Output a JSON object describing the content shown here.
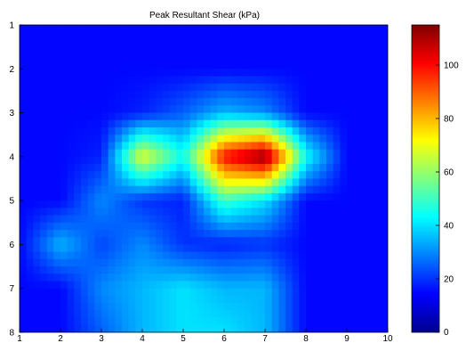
{
  "chart_data": {
    "type": "heatmap",
    "title": "Peak Resultant Shear (kPa)",
    "xlabel": "",
    "ylabel": "",
    "xlim": [
      1,
      10
    ],
    "ylim": [
      1,
      8
    ],
    "y_reversed": true,
    "x_ticks": [
      "1",
      "2",
      "3",
      "4",
      "5",
      "6",
      "7",
      "8",
      "9",
      "10"
    ],
    "y_ticks": [
      "1",
      "2",
      "3",
      "4",
      "5",
      "6",
      "7",
      "8"
    ],
    "colorbar": {
      "colormap": "jet",
      "range": [
        0,
        115
      ],
      "ticks": [
        "0",
        "20",
        "40",
        "60",
        "80",
        "100"
      ]
    },
    "grid": false,
    "z_values_kPa": [
      [
        15,
        15,
        15,
        15,
        15,
        15,
        15,
        15,
        15,
        15
      ],
      [
        15,
        15,
        15,
        15,
        15,
        15,
        15,
        15,
        15,
        15
      ],
      [
        15,
        15,
        15,
        18,
        25,
        35,
        30,
        15,
        15,
        15
      ],
      [
        15,
        15,
        18,
        70,
        45,
        100,
        115,
        45,
        15,
        15
      ],
      [
        15,
        15,
        30,
        20,
        18,
        50,
        40,
        15,
        15,
        15
      ],
      [
        15,
        35,
        22,
        30,
        20,
        18,
        20,
        15,
        15,
        15
      ],
      [
        15,
        15,
        30,
        35,
        40,
        35,
        35,
        15,
        15,
        15
      ],
      [
        15,
        15,
        25,
        35,
        40,
        40,
        35,
        15,
        15,
        15
      ]
    ]
  }
}
